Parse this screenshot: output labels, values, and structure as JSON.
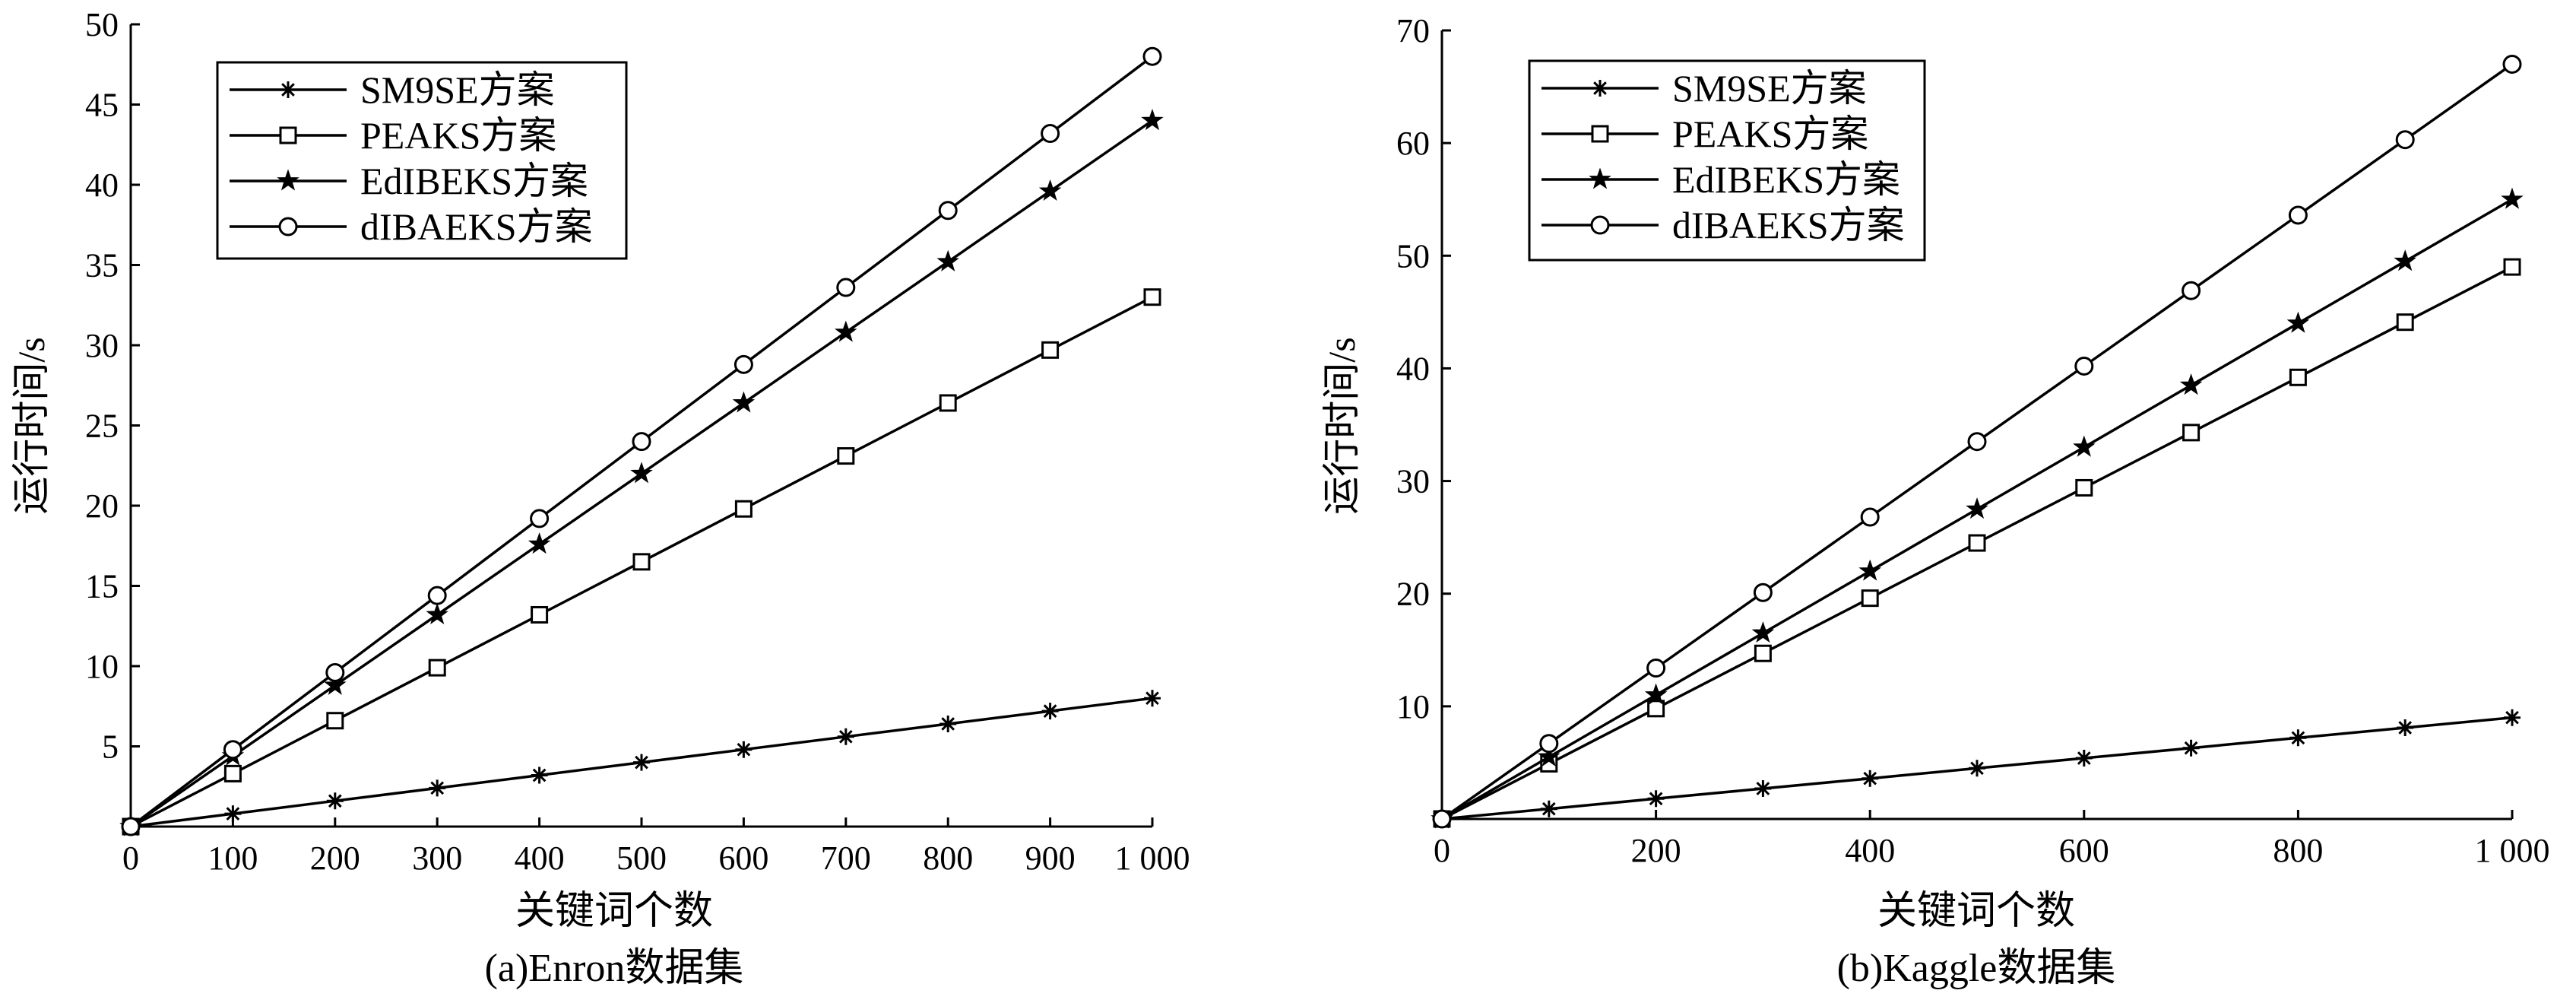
{
  "chart_data": [
    {
      "type": "line",
      "caption": "(a)Enron数据集",
      "xlabel": "关键词个数",
      "ylabel": "运行时间/s",
      "x": [
        0,
        100,
        200,
        300,
        400,
        500,
        600,
        700,
        800,
        900,
        1000
      ],
      "x_tick_labels": [
        "0",
        "100",
        "200",
        "300",
        "400",
        "500",
        "600",
        "700",
        "800",
        "900",
        "1 000"
      ],
      "y_ticks": [
        5,
        10,
        15,
        20,
        25,
        30,
        35,
        40,
        45,
        50
      ],
      "xlim": [
        0,
        1000
      ],
      "ylim": [
        0,
        50
      ],
      "grid": false,
      "legend": "top-left",
      "series": [
        {
          "name": "SM9SE方案",
          "marker": "asterisk",
          "values": [
            0,
            0.8,
            1.6,
            2.4,
            3.2,
            4.0,
            4.8,
            5.6,
            6.4,
            7.2,
            8.0
          ]
        },
        {
          "name": "PEAKS方案",
          "marker": "square",
          "values": [
            0,
            3.3,
            6.6,
            9.9,
            13.2,
            16.5,
            19.8,
            23.1,
            26.4,
            29.7,
            33.0
          ]
        },
        {
          "name": "EdIBEKS方案",
          "marker": "star",
          "values": [
            0,
            4.4,
            8.8,
            13.2,
            17.6,
            22.0,
            26.4,
            30.8,
            35.2,
            39.6,
            44.0
          ]
        },
        {
          "name": "dIBAEKS方案",
          "marker": "circle",
          "values": [
            0,
            4.8,
            9.6,
            14.4,
            19.2,
            24.0,
            28.8,
            33.6,
            38.4,
            43.2,
            48.0
          ]
        }
      ]
    },
    {
      "type": "line",
      "caption": "(b)Kaggle数据集",
      "xlabel": "关键词个数",
      "ylabel": "运行时间/s",
      "x": [
        0,
        100,
        200,
        300,
        400,
        500,
        600,
        700,
        800,
        900,
        1000
      ],
      "x_ticks": [
        0,
        200,
        400,
        600,
        800,
        1000
      ],
      "x_tick_labels": [
        "0",
        "200",
        "400",
        "600",
        "800",
        "1 000"
      ],
      "y_ticks": [
        10,
        20,
        30,
        40,
        50,
        60,
        70
      ],
      "xlim": [
        0,
        1000
      ],
      "ylim": [
        0,
        70
      ],
      "grid": false,
      "legend": "top-left",
      "series": [
        {
          "name": "SM9SE方案",
          "marker": "asterisk",
          "values": [
            0,
            0.9,
            1.8,
            2.7,
            3.6,
            4.5,
            5.4,
            6.3,
            7.2,
            8.1,
            9.0
          ]
        },
        {
          "name": "PEAKS方案",
          "marker": "square",
          "values": [
            0,
            4.9,
            9.8,
            14.7,
            19.6,
            24.5,
            29.4,
            34.3,
            39.2,
            44.1,
            49.0
          ]
        },
        {
          "name": "EdIBEKS方案",
          "marker": "star",
          "values": [
            0,
            5.5,
            11.0,
            16.5,
            22.0,
            27.5,
            33.0,
            38.5,
            44.0,
            49.5,
            55.0
          ]
        },
        {
          "name": "dIBAEKS方案",
          "marker": "circle",
          "values": [
            0,
            6.7,
            13.4,
            20.1,
            26.8,
            33.5,
            40.2,
            46.9,
            53.6,
            60.3,
            67.0
          ]
        }
      ]
    }
  ]
}
